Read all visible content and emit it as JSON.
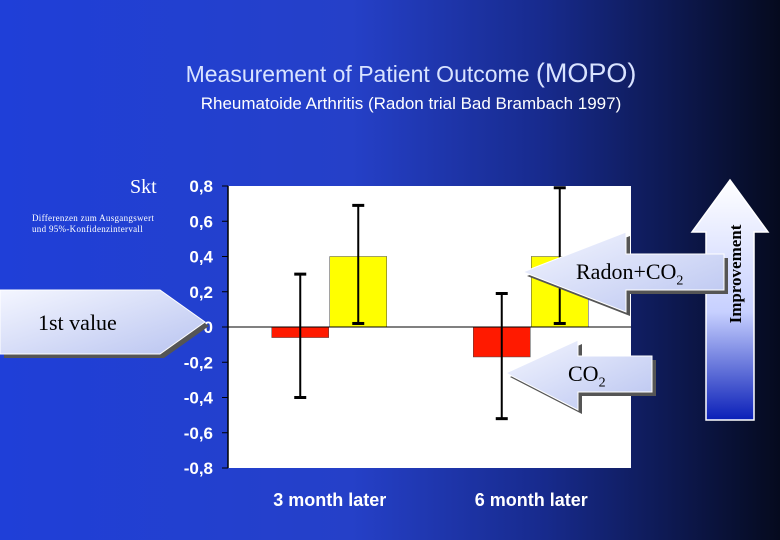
{
  "header": {
    "title": "Measurement of Patient Outcome",
    "title_paren": "(MOPO)",
    "subtitle": "Rheumatoide Arthritis (Radon trial Bad Brambach 1997)"
  },
  "unit_label": "Skt",
  "note": {
    "line1": "Differenzen zum Ausgangswert",
    "line2": "und 95%-Konfidenzintervall"
  },
  "callouts": {
    "first_value": "1st value",
    "radon": "Radon+CO",
    "radon_sub": "2",
    "co2": "CO",
    "co2_sub": "2",
    "improvement": "Improvement"
  },
  "colors": {
    "radon_co2": "#ffff00",
    "co2": "#ff1a00",
    "plot_area": "#ffffff"
  },
  "chart_data": {
    "type": "bar",
    "categories": [
      "3 month later",
      "6 month later"
    ],
    "ylim": [
      -0.8,
      0.8
    ],
    "yticks": [
      "0,8",
      "0,6",
      "0,4",
      "0,2",
      "0",
      "-0,2",
      "-0,4",
      "-0,6",
      "-0,8"
    ],
    "series": [
      {
        "name": "CO2",
        "values": [
          -0.06,
          -0.17
        ],
        "ci_low": [
          -0.4,
          -0.52
        ],
        "ci_high": [
          0.3,
          0.19
        ]
      },
      {
        "name": "Radon+CO2",
        "values": [
          0.4,
          0.4
        ],
        "ci_low": [
          0.02,
          0.02
        ],
        "ci_high": [
          0.69,
          0.79
        ]
      }
    ],
    "grid": false,
    "legend": "none"
  }
}
